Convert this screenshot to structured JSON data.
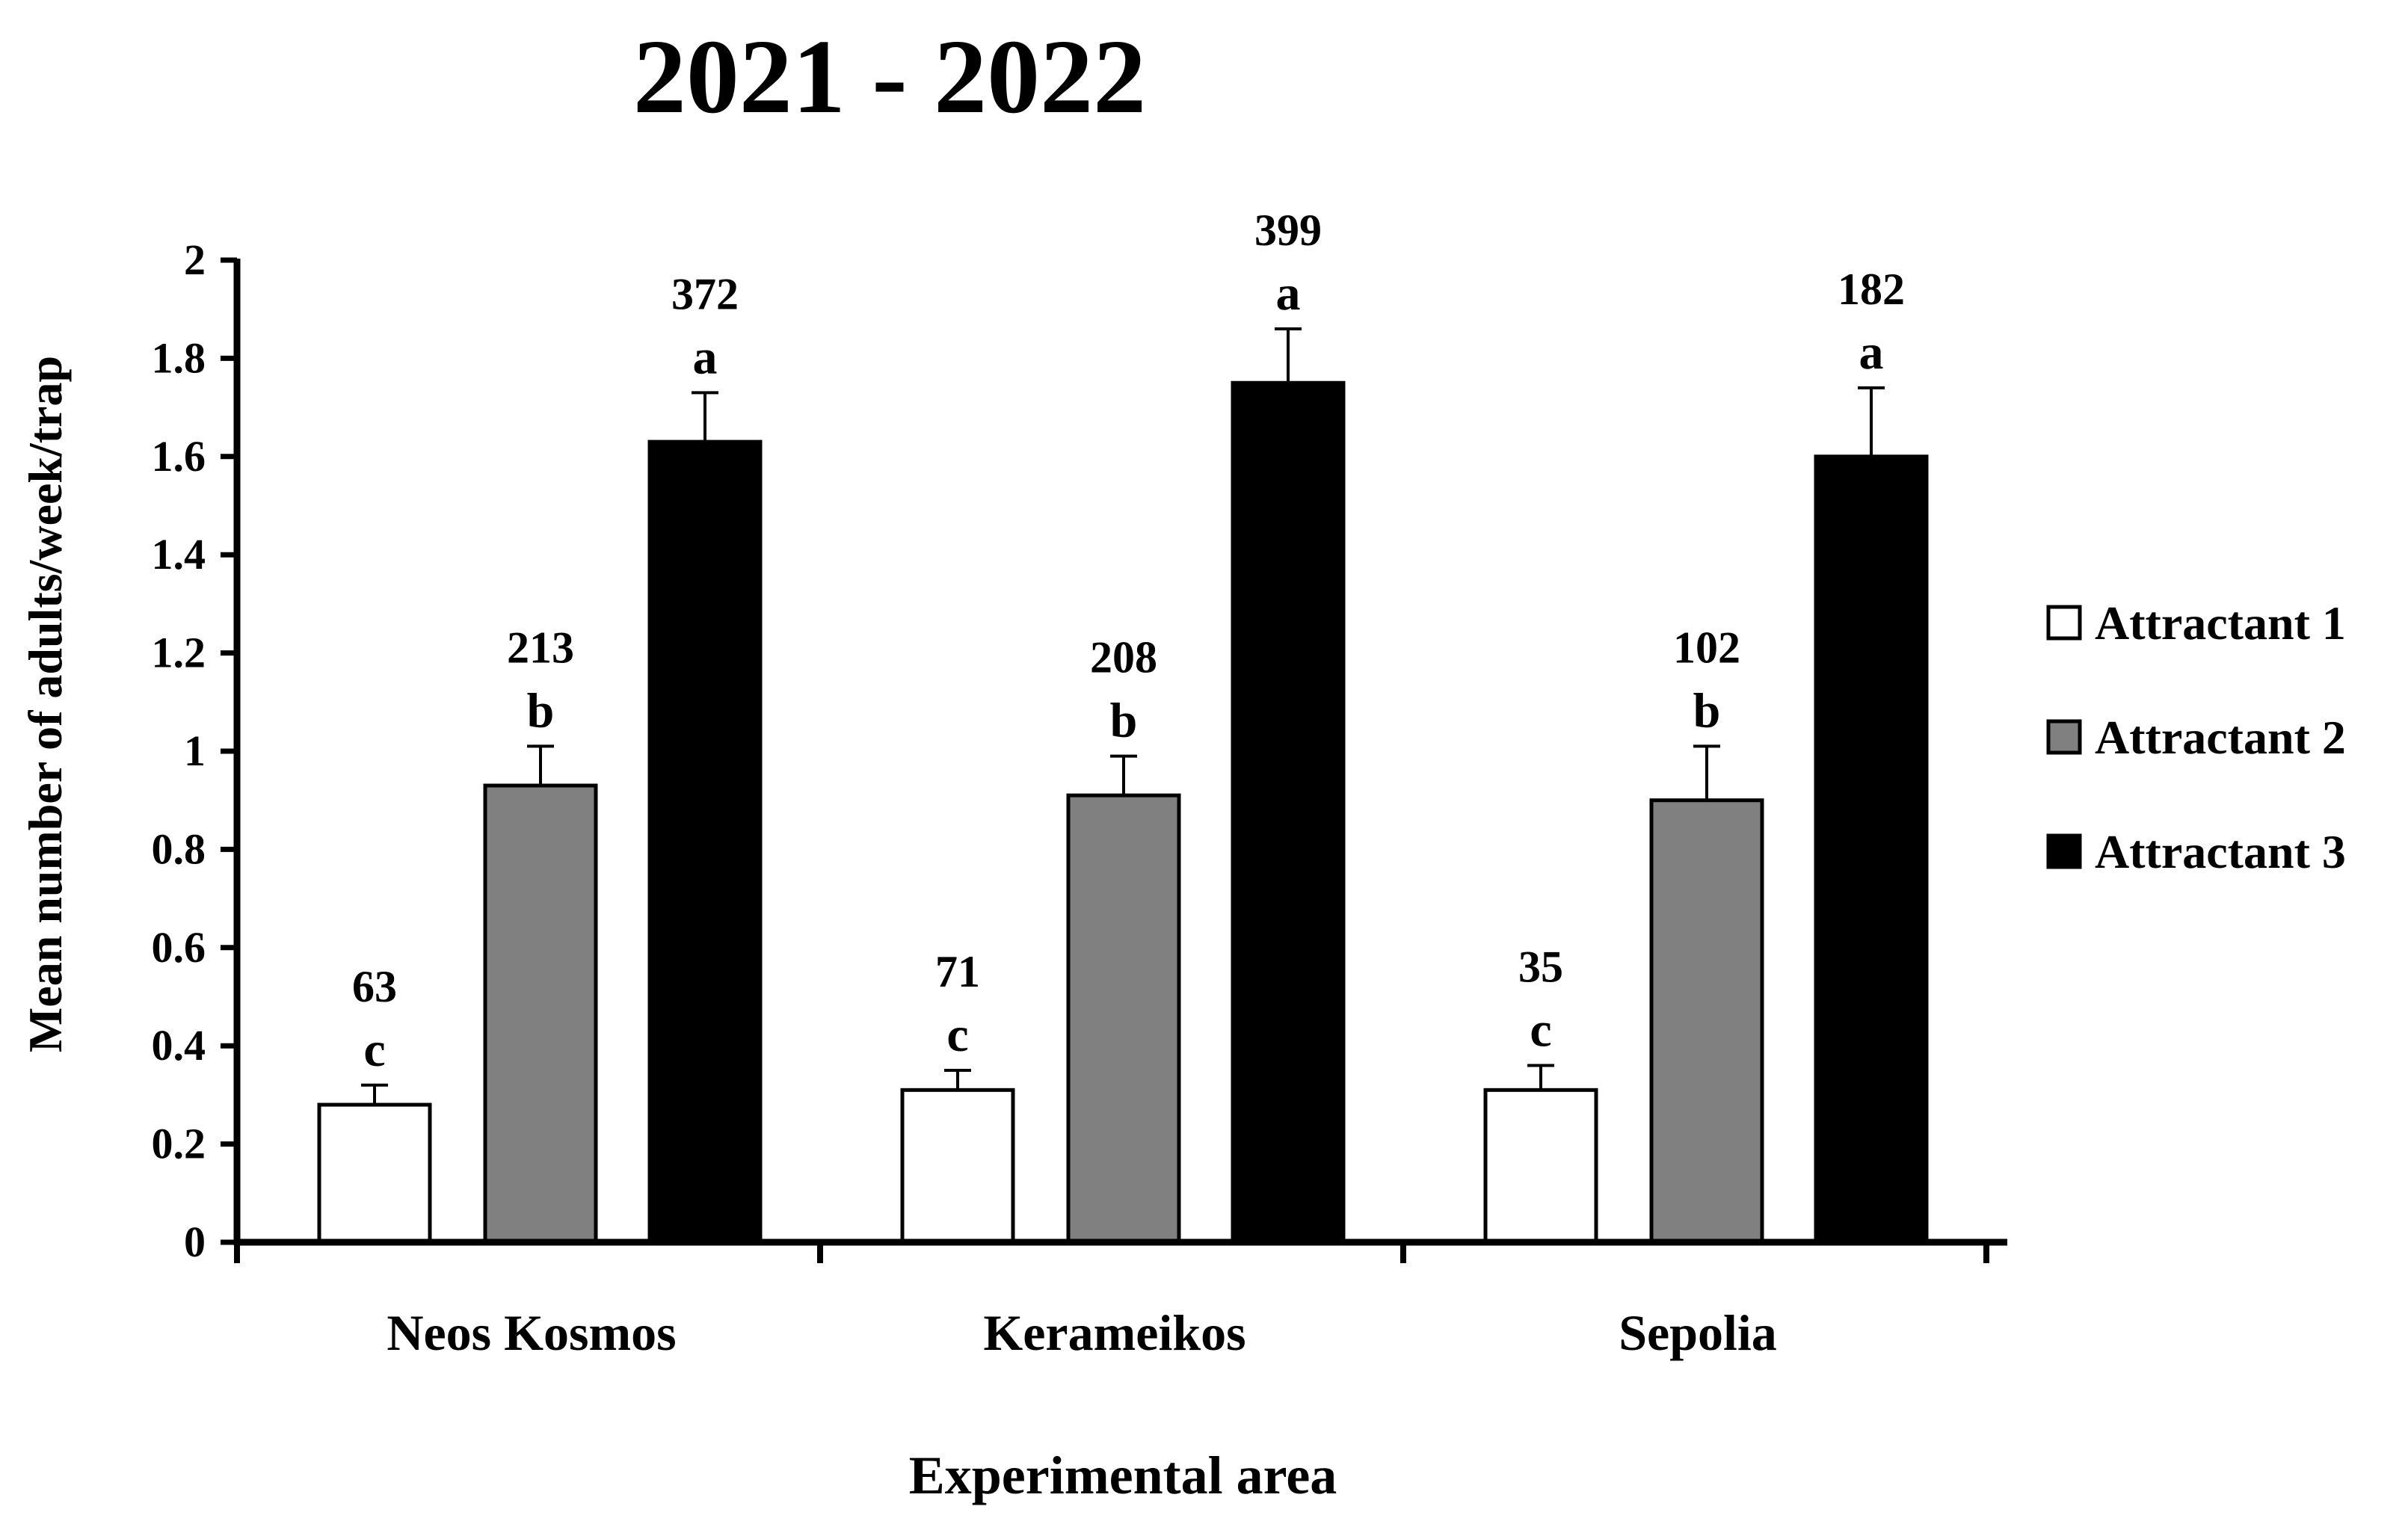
{
  "chart_data": {
    "type": "bar",
    "title": "2021 - 2022",
    "xlabel": "Experimental area",
    "ylabel": "Mean number of adults/week/trap",
    "categories": [
      "Neos Kosmos",
      "Kerameikos",
      "Sepolia"
    ],
    "ylim": [
      0,
      2
    ],
    "yticks": [
      0,
      0.2,
      0.4,
      0.6,
      0.8,
      1,
      1.2,
      1.4,
      1.6,
      1.8,
      2
    ],
    "ytick_labels": [
      "0",
      "0.2",
      "0.4",
      "0.6",
      "0.8",
      "1",
      "1.2",
      "1.4",
      "1.6",
      "1.8",
      "2"
    ],
    "grid": false,
    "legend_position": "right",
    "series": [
      {
        "name": "Attractant 1",
        "color": "#ffffff",
        "values": [
          0.28,
          0.31,
          0.31
        ],
        "errors": [
          0.04,
          0.04,
          0.05
        ],
        "letters": [
          "c",
          "c",
          "c"
        ],
        "counts": [
          "63",
          "71",
          "35"
        ]
      },
      {
        "name": "Attractant 2",
        "color": "#808080",
        "values": [
          0.93,
          0.91,
          0.9
        ],
        "errors": [
          0.08,
          0.08,
          0.11
        ],
        "letters": [
          "b",
          "b",
          "b"
        ],
        "counts": [
          "213",
          "208",
          "102"
        ]
      },
      {
        "name": "Attractant 3",
        "color": "#000000",
        "values": [
          1.63,
          1.75,
          1.6
        ],
        "errors": [
          0.1,
          0.11,
          0.14
        ],
        "letters": [
          "a",
          "a",
          "a"
        ],
        "counts": [
          "372",
          "399",
          "182"
        ]
      }
    ]
  }
}
